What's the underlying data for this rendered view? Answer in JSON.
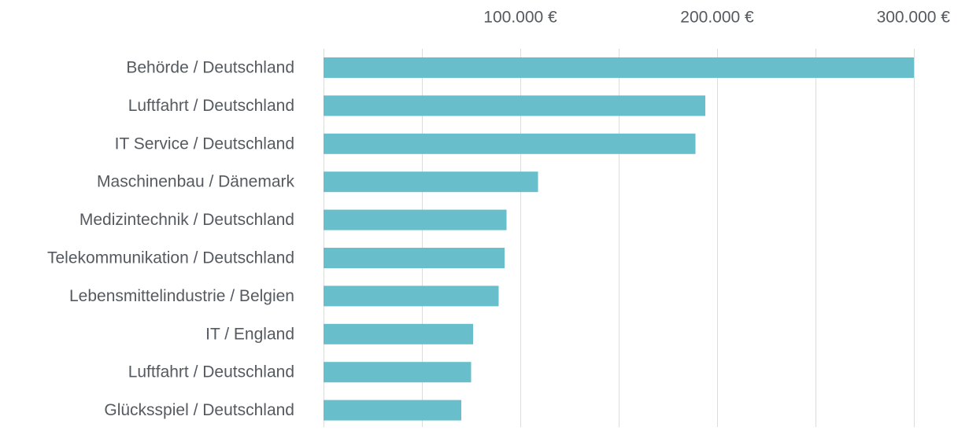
{
  "chart_data": {
    "type": "bar",
    "orientation": "horizontal",
    "categories": [
      "Behörde / Deutschland",
      "Luftfahrt / Deutschland",
      "IT Service / Deutschland",
      "Maschinenbau / Dänemark",
      "Medizintechnik / Deutschland",
      "Telekommunikation / Deutschland",
      "Lebensmittelindustrie / Belgien",
      "IT / England",
      "Luftfahrt / Deutschland",
      "Glücksspiel / Deutschland"
    ],
    "values": [
      300000,
      194000,
      189000,
      109000,
      93000,
      92000,
      89000,
      76000,
      75000,
      70000
    ],
    "tick_values": [
      100000,
      200000,
      300000
    ],
    "tick_labels": [
      "100.000 €",
      "200.000 €",
      "300.000 €"
    ],
    "xlim": [
      0,
      300000
    ],
    "grid": true,
    "colors": {
      "bar": "#68bfcb",
      "grid": "#dcdcdc",
      "text": "#555a60"
    }
  }
}
